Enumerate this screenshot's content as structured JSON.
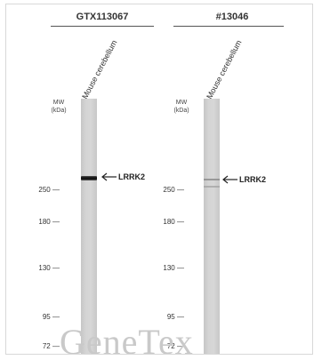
{
  "panels": [
    {
      "header": "GTX113067",
      "sample": "Mouse cerebellum",
      "mw_title_line1": "MW",
      "mw_title_line2": "(kDa)",
      "target": "LRRK2",
      "markers": [
        "250",
        "180",
        "130",
        "95",
        "72"
      ]
    },
    {
      "header": "#13046",
      "sample": "Mouse cerebellum",
      "mw_title_line1": "MW",
      "mw_title_line2": "(kDa)",
      "target": "LRRK2",
      "markers": [
        "250",
        "180",
        "130",
        "95",
        "72"
      ]
    }
  ],
  "watermark": "GeneTex"
}
